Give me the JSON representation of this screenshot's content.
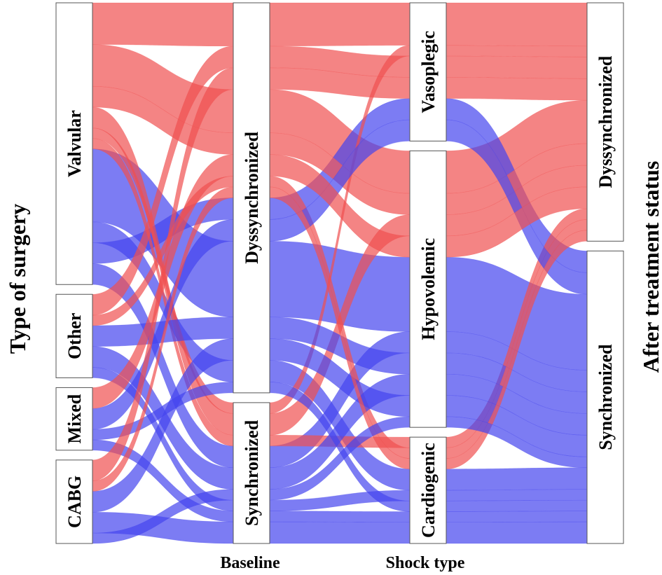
{
  "chart_data": {
    "type": "alluvial",
    "title": "",
    "left_axis_label": "Type of surgery",
    "right_axis_label": "After treatment status",
    "colors": {
      "Dyssynchronized": "#f05050",
      "Synchronized": "#4545ee",
      "opacity": 0.7
    },
    "axes": [
      {
        "name": "Type of surgery",
        "label": "",
        "categories": [
          "Valvular",
          "Other",
          "Mixed",
          "CABG"
        ]
      },
      {
        "name": "Baseline",
        "label": "Baseline",
        "categories": [
          "Dyssynchronized",
          "Synchronized"
        ]
      },
      {
        "name": "Shock type",
        "label": "Shock type",
        "categories": [
          "Vasoplegic",
          "Hypovolemic",
          "Cardiogenic"
        ]
      },
      {
        "name": "After treatment status",
        "label": "",
        "categories": [
          "Dyssynchronized",
          "Synchronized"
        ]
      }
    ],
    "patients": [
      {
        "surgery": "Valvular",
        "baseline": "Dyssynchronized",
        "shock": "Vasoplegic",
        "after": "Dyssynchronized",
        "n": 4
      },
      {
        "surgery": "Valvular",
        "baseline": "Dyssynchronized",
        "shock": "Hypovolemic",
        "after": "Dyssynchronized",
        "n": 4
      },
      {
        "surgery": "Valvular",
        "baseline": "Dyssynchronized",
        "shock": "Hypovolemic",
        "after": "Synchronized",
        "n": 7
      },
      {
        "surgery": "Valvular",
        "baseline": "Dyssynchronized",
        "shock": "Cardiogenic",
        "after": "Synchronized",
        "n": 2
      },
      {
        "surgery": "Valvular",
        "baseline": "Dyssynchronized",
        "shock": "Vasoplegic",
        "after": "Synchronized",
        "n": 2
      },
      {
        "surgery": "Valvular",
        "baseline": "Dyssynchronized",
        "shock": "Hypovolemic",
        "after": "Dyssynchronized",
        "n": 2
      },
      {
        "surgery": "Valvular",
        "baseline": "Synchronized",
        "shock": "Hypovolemic",
        "after": "Synchronized",
        "n": 2
      },
      {
        "surgery": "Valvular",
        "baseline": "Synchronized",
        "shock": "Hypovolemic",
        "after": "Dyssynchronized",
        "n": 2
      },
      {
        "surgery": "Valvular",
        "baseline": "Synchronized",
        "shock": "Vasoplegic",
        "after": "Dyssynchronized",
        "n": 1
      },
      {
        "surgery": "Valvular",
        "baseline": "Synchronized",
        "shock": "Cardiogenic",
        "after": "Dyssynchronized",
        "n": 1
      },
      {
        "surgery": "Other",
        "baseline": "Dyssynchronized",
        "shock": "Vasoplegic",
        "after": "Dyssynchronized",
        "n": 2
      },
      {
        "surgery": "Other",
        "baseline": "Dyssynchronized",
        "shock": "Hypovolemic",
        "after": "Synchronized",
        "n": 2
      },
      {
        "surgery": "Other",
        "baseline": "Dyssynchronized",
        "shock": "Cardiogenic",
        "after": "Dyssynchronized",
        "n": 1
      },
      {
        "surgery": "Other",
        "baseline": "Synchronized",
        "shock": "Hypovolemic",
        "after": "Synchronized",
        "n": 2
      },
      {
        "surgery": "Other",
        "baseline": "Synchronized",
        "shock": "Cardiogenic",
        "after": "Synchronized",
        "n": 1
      },
      {
        "surgery": "Mixed",
        "baseline": "Dyssynchronized",
        "shock": "Vasoplegic",
        "after": "Synchronized",
        "n": 2
      },
      {
        "surgery": "Mixed",
        "baseline": "Dyssynchronized",
        "shock": "Hypovolemic",
        "after": "Dyssynchronized",
        "n": 2
      },
      {
        "surgery": "Mixed",
        "baseline": "Dyssynchronized",
        "shock": "Cardiogenic",
        "after": "Synchronized",
        "n": 1
      },
      {
        "surgery": "Mixed",
        "baseline": "Synchronized",
        "shock": "Cardiogenic",
        "after": "Synchronized",
        "n": 1
      },
      {
        "surgery": "CABG",
        "baseline": "Dyssynchronized",
        "shock": "Vasoplegic",
        "after": "Dyssynchronized",
        "n": 2
      },
      {
        "surgery": "CABG",
        "baseline": "Dyssynchronized",
        "shock": "Hypovolemic",
        "after": "Synchronized",
        "n": 2
      },
      {
        "surgery": "CABG",
        "baseline": "Dyssynchronized",
        "shock": "Cardiogenic",
        "after": "Dyssynchronized",
        "n": 1
      },
      {
        "surgery": "CABG",
        "baseline": "Synchronized",
        "shock": "Cardiogenic",
        "after": "Synchronized",
        "n": 2
      },
      {
        "surgery": "CABG",
        "baseline": "Synchronized",
        "shock": "Hypovolemic",
        "after": "Synchronized",
        "n": 1
      }
    ]
  }
}
